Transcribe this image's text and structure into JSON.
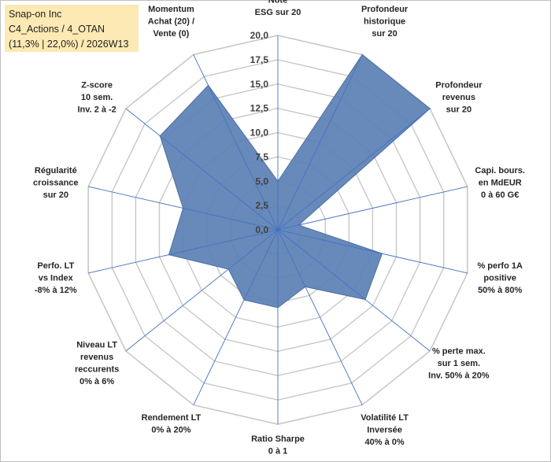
{
  "title_box": {
    "line1": "Snap-on Inc",
    "line2": "C4_Actions / 4_OTAN",
    "line3": "(11,3% | 22,0%) / 2026W13"
  },
  "colors": {
    "fill": "#5b80b4",
    "stroke": "#4a6fa5",
    "grid": "#c8c8c8",
    "spoke": "#4472c4",
    "title_bg": "#fde9b3"
  },
  "chart_data": {
    "type": "radar",
    "title": "Snap-on Inc",
    "rmin": 0,
    "rmax": 20,
    "tick_step": 2.5,
    "tick_labels": [
      "0,0",
      "2,5",
      "5,0",
      "7,5",
      "10,0",
      "12,5",
      "15,0",
      "17,5",
      "20,0"
    ],
    "axes": [
      {
        "label": [
          "Note",
          "ESG sur 20"
        ],
        "value": 5.0
      },
      {
        "label": [
          "Profondeur",
          "historique",
          "sur 20"
        ],
        "value": 20.0
      },
      {
        "label": [
          "Profondeur",
          "revenus",
          "sur 20"
        ],
        "value": 20.0
      },
      {
        "label": [
          "Capi. bours.",
          "en MdEUR",
          "0 à 60 G€"
        ],
        "value": 2.2
      },
      {
        "label": [
          "% perfo 1A",
          "positive",
          "50% à 80%"
        ],
        "value": 11.0
      },
      {
        "label": [
          "% perte max.",
          "sur 1 sem.",
          "Inv. 50% à 20%"
        ],
        "value": 11.5
      },
      {
        "label": [
          "Volatilité LT",
          "Inversée",
          "40% à 0%"
        ],
        "value": 6.5
      },
      {
        "label": [
          "Ratio Sharpe",
          "0 à 1"
        ],
        "value": 8.0
      },
      {
        "label": [
          "Rendement LT",
          "0% à 20%"
        ],
        "value": 8.0
      },
      {
        "label": [
          "Niveau LT",
          "revenus",
          "reccurents",
          "0% à 6%"
        ],
        "value": 6.5
      },
      {
        "label": [
          "Perfo. LT",
          "vs Index",
          "-8% à 12%"
        ],
        "value": 11.5
      },
      {
        "label": [
          "Régularité",
          "croissance",
          "sur 20"
        ],
        "value": 10.0
      },
      {
        "label": [
          "Z-score",
          "10 sem.",
          "Inv. 2 à -2"
        ],
        "value": 15.5
      },
      {
        "label": [
          "Momentum",
          "Achat (20) /",
          "Vente (0)"
        ],
        "value": 16.5
      }
    ]
  }
}
